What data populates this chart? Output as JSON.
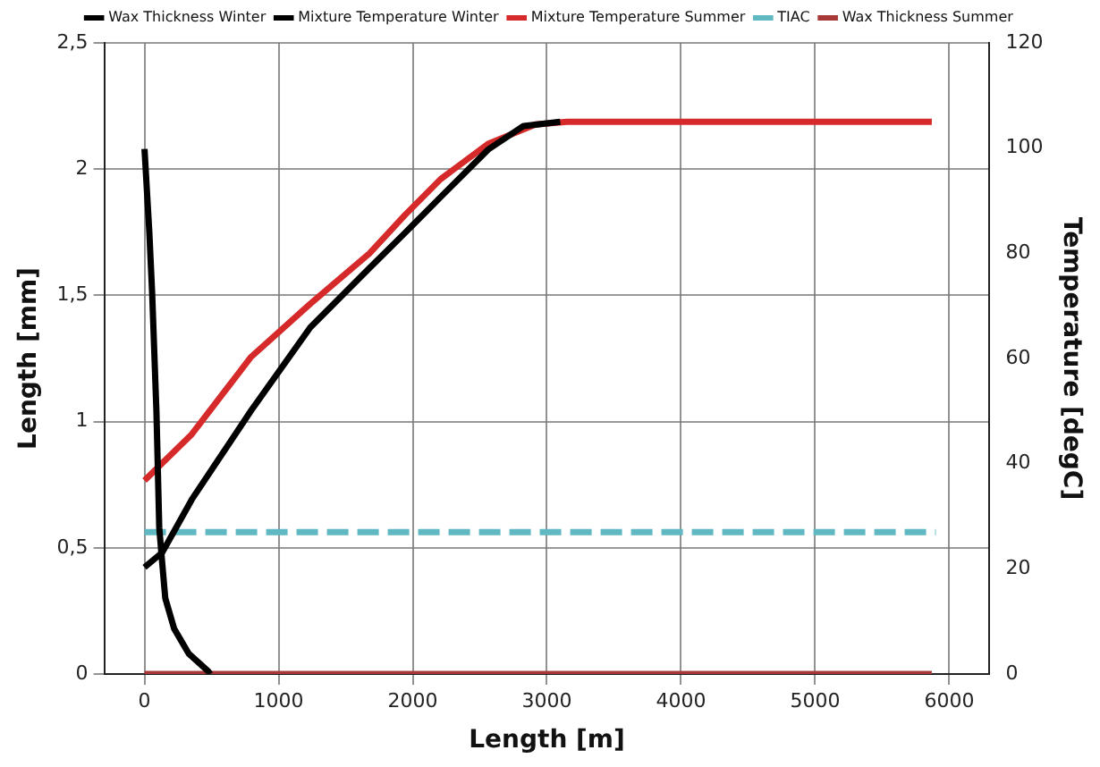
{
  "chart_data": {
    "type": "line",
    "xlabel": "Length [m]",
    "ylabel": "Length [mm]",
    "y2label": "Temperature [degC]",
    "xlim": [
      -300,
      6300
    ],
    "xticks": [
      0,
      1000,
      2000,
      3000,
      4000,
      5000,
      6000
    ],
    "ylim": [
      0,
      2.5
    ],
    "yticks": [
      0,
      {
        "value": 0.5,
        "label": "0,5"
      },
      1,
      {
        "value": 1.5,
        "label": "1,5"
      },
      2,
      {
        "value": 2.5,
        "label": "2,5"
      }
    ],
    "y2lim": [
      0,
      120
    ],
    "y2ticks": [
      0,
      20,
      40,
      60,
      80,
      100,
      120
    ],
    "grid": true,
    "legend": "top",
    "marker": "none",
    "line_style": "solid",
    "series": [
      {
        "name": "Wax Thickness Winter",
        "color": "#000000",
        "axis": "y",
        "x": [
          0,
          36,
          57,
          89,
          110,
          132,
          155,
          221,
          331,
          477,
          490
        ],
        "values": [
          2.08,
          1.75,
          1.51,
          1.04,
          0.58,
          0.44,
          0.3,
          0.18,
          0.08,
          0.01,
          0
        ]
      },
      {
        "name": "Mixture Temperature Winter",
        "color": "#000000",
        "axis": "y2",
        "x": [
          0,
          132,
          353,
          795,
          1236,
          1678,
          1943,
          2208,
          2561,
          2826,
          3100
        ],
        "values": [
          20.3,
          23.1,
          33.2,
          50.1,
          65.9,
          77.2,
          83.9,
          90.7,
          99.7,
          104.2,
          105
        ]
      },
      {
        "name": "Mixture Temperature Summer",
        "color": "#d62a2a",
        "axis": "y2",
        "x": [
          0,
          353,
          795,
          1236,
          1678,
          1943,
          2208,
          2561,
          2914,
          3150,
          5870
        ],
        "values": [
          36.8,
          45.6,
          60.3,
          70.4,
          80,
          87.3,
          94.1,
          100.8,
          104.5,
          105,
          105
        ]
      },
      {
        "name": "TIAC",
        "color": "#5fb8c2",
        "axis": "y2",
        "line_style": "dashed",
        "x": [
          0,
          5900
        ],
        "values": [
          27,
          27
        ]
      },
      {
        "name": "Wax Thickness Summer",
        "color": "#a83838",
        "axis": "y",
        "x": [
          0,
          5870
        ],
        "values": [
          0,
          0
        ]
      }
    ]
  }
}
